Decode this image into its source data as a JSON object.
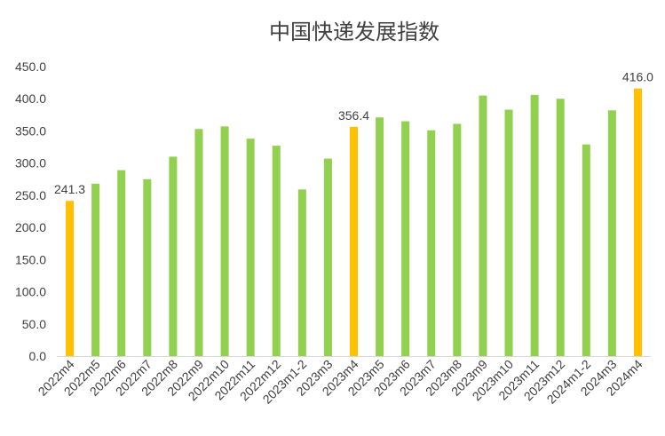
{
  "chart_data": {
    "type": "bar",
    "title": "中国快递发展指数",
    "xlabel": "",
    "ylabel": "",
    "ylim": [
      0,
      450
    ],
    "yticks": [
      "0.0",
      "50.0",
      "100.0",
      "150.0",
      "200.0",
      "250.0",
      "300.0",
      "350.0",
      "400.0",
      "450.0"
    ],
    "grid": false,
    "legend": "none",
    "categories": [
      "2022m4",
      "2022m5",
      "2022m6",
      "2022m7",
      "2022m8",
      "2022m9",
      "2022m10",
      "2022m11",
      "2022m12",
      "2023m1-2",
      "2023m3",
      "2023m4",
      "2023m5",
      "2023m6",
      "2023m7",
      "2023m8",
      "2023m9",
      "2023m10",
      "2023m11",
      "2023m12",
      "2024m1-2",
      "2024m3",
      "2024m4"
    ],
    "values": [
      241.3,
      268,
      289,
      275,
      310,
      353,
      357,
      338,
      327,
      259,
      307,
      356.4,
      371,
      365,
      351,
      361,
      405,
      383,
      406,
      400,
      329,
      382,
      416.0
    ],
    "highlight": [
      true,
      false,
      false,
      false,
      false,
      false,
      false,
      false,
      false,
      false,
      false,
      true,
      false,
      false,
      false,
      false,
      false,
      false,
      false,
      false,
      false,
      false,
      true
    ],
    "data_labels": [
      "241.3",
      "",
      "",
      "",
      "",
      "",
      "",
      "",
      "",
      "",
      "",
      "356.4",
      "",
      "",
      "",
      "",
      "",
      "",
      "",
      "",
      "",
      "",
      "416.0"
    ],
    "colors": {
      "bar": "#92D050",
      "highlight": "#FFC000",
      "axis": "#D9D9D9",
      "text": "#404040"
    }
  }
}
